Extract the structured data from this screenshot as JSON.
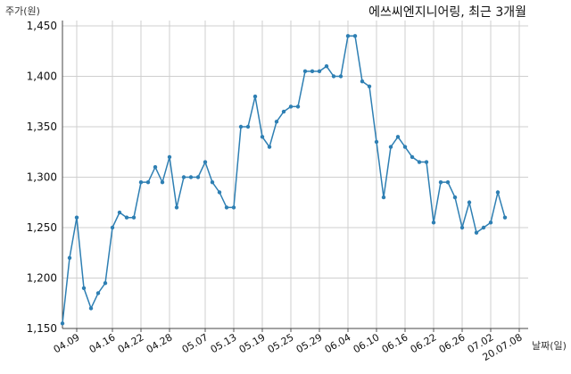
{
  "chart_data": {
    "type": "line",
    "title": "에쓰씨엔지니어링, 최근 3개월",
    "ylabel": "주가(원)",
    "xlabel": "날짜(일)",
    "ylim": [
      1150,
      1450
    ],
    "yticks": [
      1150,
      1200,
      1250,
      1300,
      1350,
      1400,
      1450
    ],
    "ytick_labels": [
      "1,150",
      "1,200",
      "1,250",
      "1,300",
      "1,350",
      "1,400",
      "1,450"
    ],
    "xtick_labels": [
      "04.09",
      "04.16",
      "04.22",
      "04.28",
      "05.07",
      "05.13",
      "05.19",
      "05.25",
      "05.29",
      "06.04",
      "06.10",
      "06.16",
      "06.22",
      "06.26",
      "07.02",
      "20.07.08"
    ],
    "xtick_indices": [
      2,
      7,
      11,
      15,
      20,
      24,
      28,
      32,
      36,
      40,
      44,
      48,
      52,
      56,
      60,
      64
    ],
    "grid": true,
    "color": "#2e7fb3",
    "series": [
      {
        "values": [
          1155,
          1220,
          1260,
          1190,
          1170,
          1185,
          1195,
          1250,
          1265,
          1260,
          1260,
          1295,
          1295,
          1310,
          1295,
          1320,
          1270,
          1300,
          1300,
          1300,
          1315,
          1295,
          1285,
          1270,
          1270,
          1350,
          1350,
          1380,
          1340,
          1330,
          1355,
          1365,
          1370,
          1370,
          1405,
          1405,
          1405,
          1410,
          1400,
          1400,
          1440,
          1440,
          1395,
          1390,
          1335,
          1280,
          1330,
          1340,
          1330,
          1320,
          1315,
          1315,
          1255,
          1295,
          1295,
          1280,
          1250,
          1275,
          1245,
          1250,
          1255,
          1285,
          1260
        ]
      }
    ]
  }
}
